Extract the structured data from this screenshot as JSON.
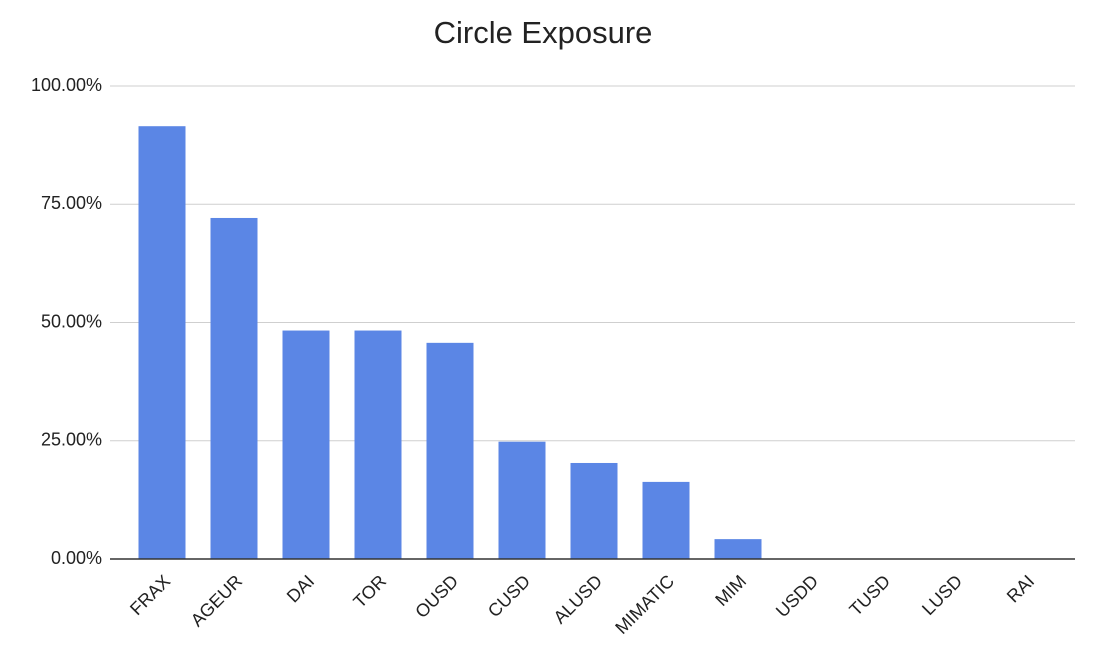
{
  "chart_data": {
    "type": "bar",
    "title": "Circle Exposure",
    "categories": [
      "FRAX",
      "AGEUR",
      "DAI",
      "TOR",
      "OUSD",
      "CUSD",
      "ALUSD",
      "MIMATIC",
      "MIM",
      "USDD",
      "TUSD",
      "LUSD",
      "RAI"
    ],
    "values": [
      91.5,
      72.1,
      48.3,
      48.3,
      45.7,
      24.8,
      20.3,
      16.3,
      4.2,
      0,
      0,
      0,
      0
    ],
    "color": "#5b86e5",
    "ylim": [
      0,
      100
    ],
    "yticks": [
      {
        "value": 0,
        "label": "0.00%"
      },
      {
        "value": 25,
        "label": "25.00%"
      },
      {
        "value": 50,
        "label": "50.00%"
      },
      {
        "value": 75,
        "label": "75.00%"
      },
      {
        "value": 100,
        "label": "100.00%"
      }
    ],
    "grid": true
  }
}
